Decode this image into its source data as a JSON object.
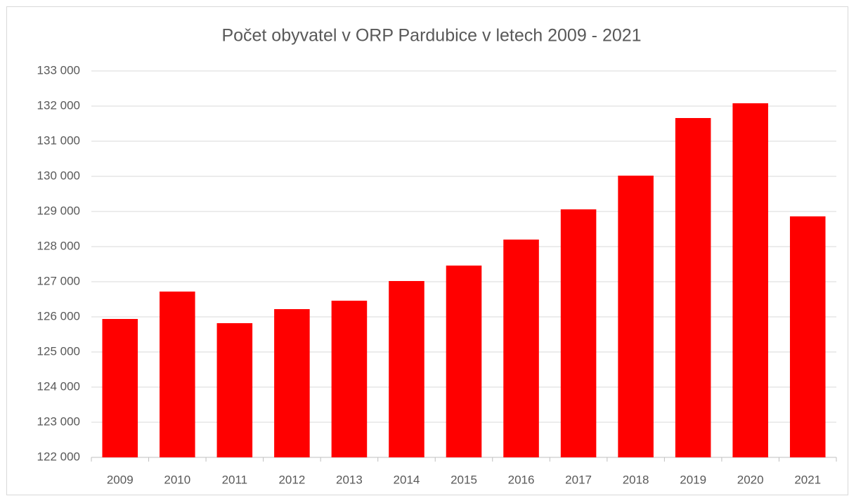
{
  "chart_data": {
    "type": "bar",
    "title": "Počet obyvatel v ORP Pardubice v letech 2009 - 2021",
    "categories": [
      "2009",
      "2010",
      "2011",
      "2012",
      "2013",
      "2014",
      "2015",
      "2016",
      "2017",
      "2018",
      "2019",
      "2020",
      "2021"
    ],
    "values": [
      125940,
      126720,
      125820,
      126220,
      126460,
      127020,
      127460,
      128200,
      129060,
      130020,
      131660,
      132080,
      128860
    ],
    "color": "#ff0000",
    "ylim": [
      122000,
      133000
    ],
    "yticks": [
      {
        "value": 122000,
        "label": "122 000"
      },
      {
        "value": 123000,
        "label": "123 000"
      },
      {
        "value": 124000,
        "label": "124 000"
      },
      {
        "value": 125000,
        "label": "125 000"
      },
      {
        "value": 126000,
        "label": "126 000"
      },
      {
        "value": 127000,
        "label": "127 000"
      },
      {
        "value": 128000,
        "label": "128 000"
      },
      {
        "value": 129000,
        "label": "129 000"
      },
      {
        "value": 130000,
        "label": "130 000"
      },
      {
        "value": 131000,
        "label": "131 000"
      },
      {
        "value": 132000,
        "label": "132 000"
      },
      {
        "value": 133000,
        "label": "133 000"
      }
    ],
    "grid": true
  }
}
